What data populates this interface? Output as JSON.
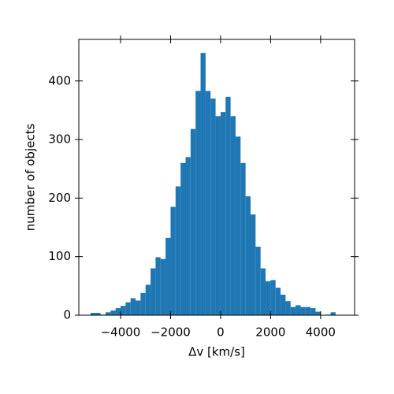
{
  "chart_data": {
    "type": "histogram",
    "xlabel": "Δv [km/s]",
    "ylabel": "number of objects",
    "color": "#1f77b4",
    "bins": [
      -5200,
      -5000,
      -4800,
      -4600,
      -4400,
      -4200,
      -4000,
      -3800,
      -3600,
      -3400,
      -3200,
      -3000,
      -2800,
      -2600,
      -2400,
      -2200,
      -2000,
      -1800,
      -1600,
      -1400,
      -1200,
      -1000,
      -800,
      -600,
      -400,
      -200,
      0,
      200,
      400,
      600,
      800,
      1000,
      1200,
      1400,
      1600,
      1800,
      2000,
      2200,
      2400,
      2600,
      2800,
      3000,
      3200,
      3400,
      3600,
      3800,
      4000,
      4200,
      4400,
      4600,
      4800
    ],
    "counts": [
      4,
      4,
      1,
      5,
      8,
      12,
      16,
      22,
      29,
      25,
      38,
      52,
      80,
      99,
      96,
      132,
      185,
      220,
      260,
      270,
      318,
      383,
      448,
      383,
      370,
      340,
      347,
      373,
      340,
      305,
      260,
      203,
      172,
      117,
      80,
      58,
      60,
      47,
      35,
      24,
      14,
      17,
      14,
      14,
      12,
      6,
      0,
      1,
      5,
      0
    ],
    "xlim": [
      -5670,
      5360
    ],
    "ylim": [
      0,
      471
    ],
    "xticks": [
      {
        "value": -4000,
        "label": "−4000"
      },
      {
        "value": -2000,
        "label": "−2000"
      },
      0,
      2000,
      4000
    ],
    "yticks": [
      0,
      100,
      200,
      300,
      400
    ]
  }
}
